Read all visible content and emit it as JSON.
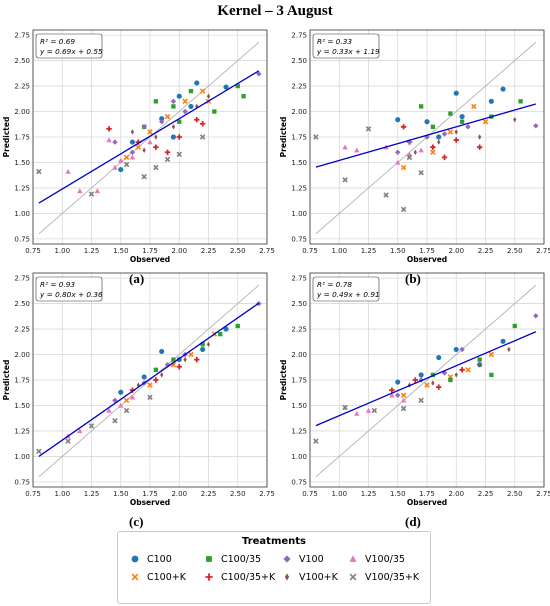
{
  "figure": {
    "title": "Kernel – 3 August"
  },
  "legend": {
    "title": "Treatments",
    "items": [
      {
        "name": "C100",
        "marker": "circle",
        "color": "#1f77b4"
      },
      {
        "name": "C100+K",
        "marker": "x",
        "color": "#ff7f0e"
      },
      {
        "name": "C100/35",
        "marker": "square",
        "color": "#2ca02c"
      },
      {
        "name": "C100/35+K",
        "marker": "plus",
        "color": "#d62728"
      },
      {
        "name": "V100",
        "marker": "diamond",
        "color": "#9467bd"
      },
      {
        "name": "V100+K",
        "marker": "thindiamond",
        "color": "#8c564b"
      },
      {
        "name": "V100/35",
        "marker": "triangle",
        "color": "#e377c2"
      },
      {
        "name": "V100/35+K",
        "marker": "x",
        "color": "#7f7f7f"
      }
    ]
  },
  "chart_data": [
    {
      "type": "scatter",
      "label": "(a)",
      "xlabel": "Observed",
      "ylabel": "Predicted",
      "xlim": [
        0.75,
        2.75
      ],
      "ylim": [
        0.7,
        2.8
      ],
      "ticks": [
        "0.75",
        "1.00",
        "1.25",
        "1.50",
        "1.75",
        "2.00",
        "2.25",
        "2.50",
        "2.75"
      ],
      "stat_r2": "R² = 0.69",
      "stat_eq": "y = 0.69x + 0.55",
      "fit": {
        "slope": 0.69,
        "intercept": 0.55,
        "x_range": [
          0.8,
          2.68
        ]
      },
      "identity_line": true,
      "grid": true,
      "series": [
        {
          "name": "C100",
          "points": [
            [
              1.5,
              1.43
            ],
            [
              1.85,
              1.93
            ],
            [
              2.0,
              2.15
            ],
            [
              2.15,
              2.28
            ],
            [
              2.4,
              2.24
            ],
            [
              1.6,
              1.7
            ],
            [
              1.95,
              1.75
            ],
            [
              2.1,
              2.05
            ]
          ]
        },
        {
          "name": "C100+K",
          "points": [
            [
              1.55,
              1.55
            ],
            [
              1.75,
              1.8
            ],
            [
              1.9,
              1.95
            ],
            [
              2.05,
              2.1
            ],
            [
              2.2,
              2.2
            ],
            [
              1.65,
              1.65
            ],
            [
              2.25,
              2.1
            ]
          ]
        },
        {
          "name": "C100/35",
          "points": [
            [
              1.8,
              2.1
            ],
            [
              1.95,
              2.05
            ],
            [
              2.0,
              1.9
            ],
            [
              2.3,
              2.0
            ],
            [
              2.5,
              2.25
            ],
            [
              2.55,
              2.15
            ],
            [
              1.7,
              1.85
            ],
            [
              2.1,
              2.2
            ]
          ]
        },
        {
          "name": "C100/35+K",
          "points": [
            [
              1.4,
              1.83
            ],
            [
              1.65,
              1.7
            ],
            [
              1.8,
              1.65
            ],
            [
              2.0,
              1.75
            ],
            [
              2.2,
              1.88
            ],
            [
              1.9,
              1.6
            ],
            [
              2.15,
              1.92
            ]
          ]
        },
        {
          "name": "V100",
          "points": [
            [
              1.45,
              1.7
            ],
            [
              1.7,
              1.85
            ],
            [
              1.85,
              1.9
            ],
            [
              2.05,
              2.0
            ],
            [
              2.68,
              2.37
            ],
            [
              1.6,
              1.6
            ],
            [
              1.95,
              2.1
            ]
          ]
        },
        {
          "name": "V100+K",
          "points": [
            [
              1.6,
              1.8
            ],
            [
              1.8,
              1.75
            ],
            [
              1.95,
              1.85
            ],
            [
              2.15,
              2.05
            ],
            [
              2.25,
              2.15
            ],
            [
              1.7,
              1.62
            ]
          ]
        },
        {
          "name": "V100/35",
          "points": [
            [
              1.05,
              1.41
            ],
            [
              1.15,
              1.22
            ],
            [
              1.3,
              1.22
            ],
            [
              1.45,
              1.45
            ],
            [
              1.5,
              1.52
            ],
            [
              1.6,
              1.55
            ],
            [
              1.75,
              1.7
            ],
            [
              1.4,
              1.72
            ]
          ]
        },
        {
          "name": "V100/35+K",
          "points": [
            [
              0.8,
              1.41
            ],
            [
              1.25,
              1.19
            ],
            [
              1.55,
              1.48
            ],
            [
              1.7,
              1.36
            ],
            [
              1.9,
              1.53
            ],
            [
              2.0,
              1.58
            ],
            [
              1.8,
              1.45
            ],
            [
              2.2,
              1.75
            ]
          ]
        }
      ]
    },
    {
      "type": "scatter",
      "label": "(b)",
      "xlabel": "Observed",
      "ylabel": "Predicted",
      "xlim": [
        0.75,
        2.75
      ],
      "ylim": [
        0.7,
        2.8
      ],
      "ticks": [
        "0.75",
        "1.00",
        "1.25",
        "1.50",
        "1.75",
        "2.00",
        "2.25",
        "2.50",
        "2.75"
      ],
      "stat_r2": "R² = 0.33",
      "stat_eq": "y = 0.33x + 1.19",
      "fit": {
        "slope": 0.33,
        "intercept": 1.19,
        "x_range": [
          0.8,
          2.68
        ]
      },
      "identity_line": true,
      "grid": true,
      "series": [
        {
          "name": "C100",
          "points": [
            [
              1.5,
              1.92
            ],
            [
              1.75,
              1.9
            ],
            [
              2.0,
              2.18
            ],
            [
              2.3,
              2.1
            ],
            [
              2.4,
              2.22
            ],
            [
              1.85,
              1.75
            ],
            [
              2.05,
              1.95
            ]
          ]
        },
        {
          "name": "C100+K",
          "points": [
            [
              1.55,
              1.45
            ],
            [
              1.8,
              1.6
            ],
            [
              1.95,
              1.8
            ],
            [
              2.15,
              2.05
            ],
            [
              2.25,
              1.9
            ],
            [
              1.6,
              1.55
            ]
          ]
        },
        {
          "name": "C100/35",
          "points": [
            [
              1.7,
              2.05
            ],
            [
              1.95,
              1.98
            ],
            [
              2.05,
              1.9
            ],
            [
              2.3,
              1.95
            ],
            [
              2.55,
              2.1
            ],
            [
              1.8,
              1.85
            ]
          ]
        },
        {
          "name": "C100/35+K",
          "points": [
            [
              1.6,
              1.7
            ],
            [
              1.8,
              1.65
            ],
            [
              2.0,
              1.72
            ],
            [
              2.2,
              1.65
            ],
            [
              1.9,
              1.55
            ],
            [
              1.55,
              1.85
            ]
          ]
        },
        {
          "name": "V100",
          "points": [
            [
              1.5,
              1.6
            ],
            [
              1.75,
              1.75
            ],
            [
              1.9,
              1.78
            ],
            [
              2.1,
              1.85
            ],
            [
              2.68,
              1.86
            ],
            [
              1.6,
              1.7
            ]
          ]
        },
        {
          "name": "V100+K",
          "points": [
            [
              1.65,
              1.6
            ],
            [
              1.85,
              1.7
            ],
            [
              2.0,
              1.8
            ],
            [
              2.2,
              1.75
            ],
            [
              2.5,
              1.92
            ]
          ]
        },
        {
          "name": "V100/35",
          "points": [
            [
              1.05,
              1.65
            ],
            [
              1.15,
              1.62
            ],
            [
              1.4,
              1.65
            ],
            [
              1.5,
              1.5
            ],
            [
              1.6,
              1.58
            ],
            [
              1.7,
              1.62
            ]
          ]
        },
        {
          "name": "V100/35+K",
          "points": [
            [
              0.8,
              1.75
            ],
            [
              1.05,
              1.33
            ],
            [
              1.25,
              1.83
            ],
            [
              1.4,
              1.18
            ],
            [
              1.55,
              1.04
            ],
            [
              1.7,
              1.4
            ],
            [
              1.6,
              1.55
            ]
          ]
        }
      ]
    },
    {
      "type": "scatter",
      "label": "(c)",
      "xlabel": "Observed",
      "ylabel": "Predicted",
      "xlim": [
        0.75,
        2.75
      ],
      "ylim": [
        0.7,
        2.8
      ],
      "ticks": [
        "0.75",
        "1.00",
        "1.25",
        "1.50",
        "1.75",
        "2.00",
        "2.25",
        "2.50",
        "2.75"
      ],
      "stat_r2": "R² = 0.93",
      "stat_eq": "y = 0.80x + 0.36",
      "fit": {
        "slope": 0.8,
        "intercept": 0.36,
        "x_range": [
          0.8,
          2.68
        ]
      },
      "identity_line": true,
      "grid": true,
      "series": [
        {
          "name": "C100",
          "points": [
            [
              1.5,
              1.63
            ],
            [
              1.85,
              2.03
            ],
            [
              2.0,
              1.95
            ],
            [
              2.2,
              2.05
            ],
            [
              2.4,
              2.25
            ],
            [
              1.7,
              1.78
            ]
          ]
        },
        {
          "name": "C100+K",
          "points": [
            [
              1.55,
              1.55
            ],
            [
              1.75,
              1.7
            ],
            [
              1.95,
              1.9
            ],
            [
              2.1,
              2.0
            ],
            [
              2.3,
              2.2
            ]
          ]
        },
        {
          "name": "C100/35",
          "points": [
            [
              1.8,
              1.85
            ],
            [
              1.95,
              1.95
            ],
            [
              2.2,
              2.1
            ],
            [
              2.5,
              2.28
            ],
            [
              2.35,
              2.2
            ]
          ]
        },
        {
          "name": "C100/35+K",
          "points": [
            [
              1.6,
              1.65
            ],
            [
              1.8,
              1.75
            ],
            [
              2.0,
              1.88
            ],
            [
              2.15,
              1.95
            ]
          ]
        },
        {
          "name": "V100",
          "points": [
            [
              1.45,
              1.55
            ],
            [
              1.7,
              1.72
            ],
            [
              1.9,
              1.9
            ],
            [
              2.05,
              2.0
            ],
            [
              2.68,
              2.5
            ]
          ]
        },
        {
          "name": "V100+K",
          "points": [
            [
              1.65,
              1.7
            ],
            [
              1.85,
              1.8
            ],
            [
              2.05,
              1.95
            ],
            [
              2.25,
              2.1
            ]
          ]
        },
        {
          "name": "V100/35",
          "points": [
            [
              1.05,
              1.2
            ],
            [
              1.15,
              1.25
            ],
            [
              1.4,
              1.45
            ],
            [
              1.5,
              1.5
            ],
            [
              1.6,
              1.58
            ]
          ]
        },
        {
          "name": "V100/35+K",
          "points": [
            [
              0.8,
              1.05
            ],
            [
              1.05,
              1.15
            ],
            [
              1.25,
              1.3
            ],
            [
              1.45,
              1.35
            ],
            [
              1.75,
              1.58
            ],
            [
              1.55,
              1.45
            ]
          ]
        }
      ]
    },
    {
      "type": "scatter",
      "label": "(d)",
      "xlabel": "Observed",
      "ylabel": "Predicted",
      "xlim": [
        0.75,
        2.75
      ],
      "ylim": [
        0.7,
        2.8
      ],
      "ticks": [
        "0.75",
        "1.00",
        "1.25",
        "1.50",
        "1.75",
        "2.00",
        "2.25",
        "2.50",
        "2.75"
      ],
      "stat_r2": "R² = 0.78",
      "stat_eq": "y = 0.49x + 0.91",
      "fit": {
        "slope": 0.49,
        "intercept": 0.91,
        "x_range": [
          0.8,
          2.68
        ]
      },
      "identity_line": true,
      "grid": true,
      "series": [
        {
          "name": "C100",
          "points": [
            [
              1.5,
              1.73
            ],
            [
              1.85,
              1.97
            ],
            [
              2.0,
              2.05
            ],
            [
              2.2,
              1.9
            ],
            [
              2.4,
              2.13
            ],
            [
              1.7,
              1.8
            ]
          ]
        },
        {
          "name": "C100+K",
          "points": [
            [
              1.55,
              1.6
            ],
            [
              1.75,
              1.7
            ],
            [
              1.95,
              1.78
            ],
            [
              2.1,
              1.85
            ],
            [
              2.3,
              2.0
            ]
          ]
        },
        {
          "name": "C100/35",
          "points": [
            [
              1.8,
              1.8
            ],
            [
              1.95,
              1.75
            ],
            [
              2.2,
              1.95
            ],
            [
              2.5,
              2.28
            ],
            [
              2.3,
              1.8
            ]
          ]
        },
        {
          "name": "C100/35+K",
          "points": [
            [
              1.45,
              1.65
            ],
            [
              1.65,
              1.75
            ],
            [
              1.85,
              1.68
            ],
            [
              2.05,
              1.85
            ]
          ]
        },
        {
          "name": "V100",
          "points": [
            [
              1.5,
              1.6
            ],
            [
              1.7,
              1.75
            ],
            [
              1.9,
              1.82
            ],
            [
              2.05,
              2.05
            ],
            [
              2.68,
              2.38
            ]
          ]
        },
        {
          "name": "V100+K",
          "points": [
            [
              1.6,
              1.7
            ],
            [
              1.8,
              1.72
            ],
            [
              2.0,
              1.8
            ],
            [
              2.2,
              1.9
            ],
            [
              2.45,
              2.05
            ]
          ]
        },
        {
          "name": "V100/35",
          "points": [
            [
              1.05,
              1.48
            ],
            [
              1.15,
              1.42
            ],
            [
              1.25,
              1.45
            ],
            [
              1.45,
              1.6
            ],
            [
              1.55,
              1.55
            ]
          ]
        },
        {
          "name": "V100/35+K",
          "points": [
            [
              0.8,
              1.15
            ],
            [
              1.05,
              1.48
            ],
            [
              1.3,
              1.45
            ],
            [
              1.55,
              1.47
            ],
            [
              1.7,
              1.55
            ]
          ]
        }
      ]
    }
  ]
}
